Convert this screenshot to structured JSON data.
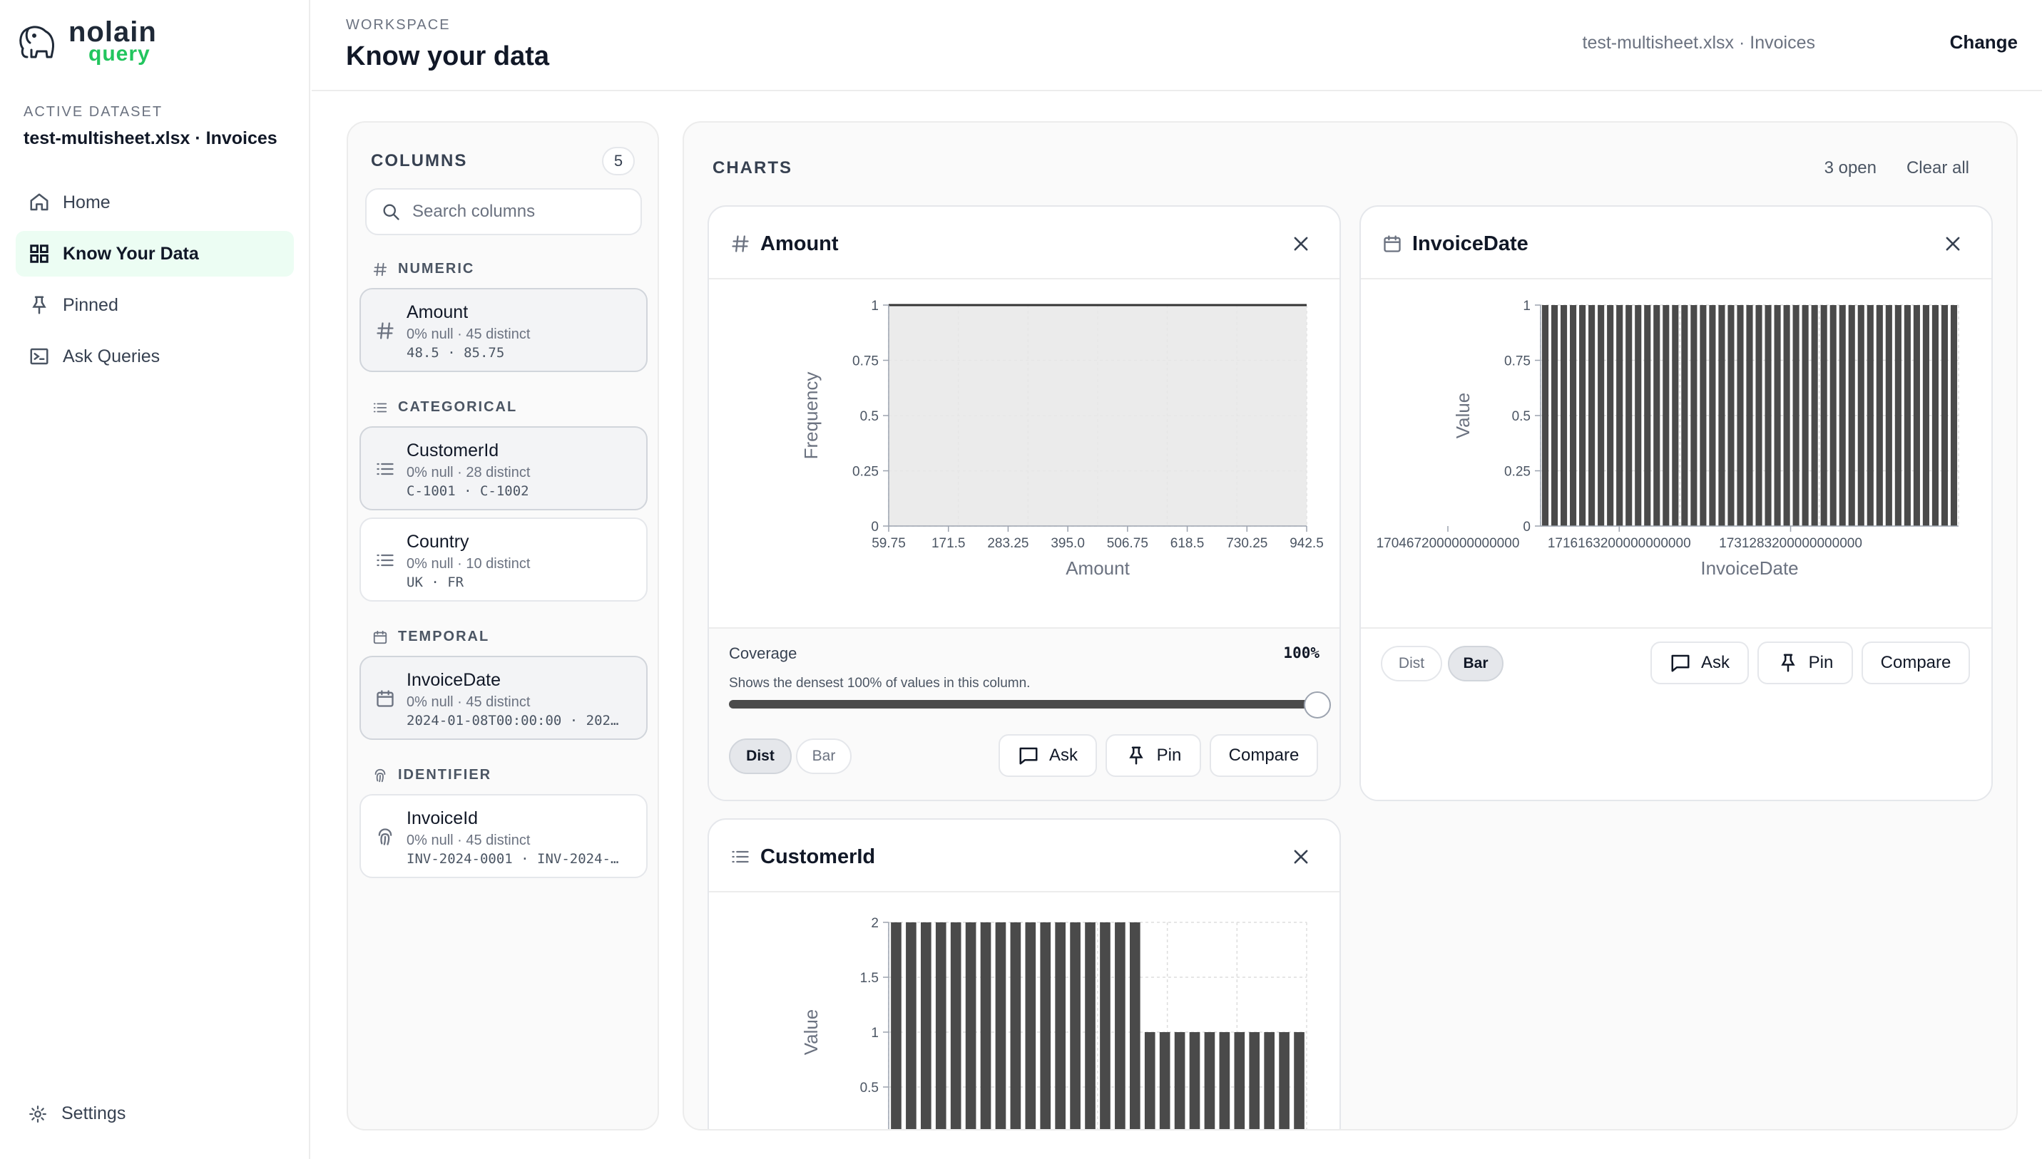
{
  "brand": {
    "line1": "nolain",
    "line2": "query"
  },
  "sidebar": {
    "active_label": "ACTIVE DATASET",
    "active_name": "test-multisheet.xlsx · Invoices",
    "items": [
      {
        "label": "Home",
        "icon": "home-icon"
      },
      {
        "label": "Know Your Data",
        "icon": "grid-icon",
        "active": true
      },
      {
        "label": "Pinned",
        "icon": "pin-icon"
      },
      {
        "label": "Ask Queries",
        "icon": "terminal-icon"
      }
    ],
    "settings_label": "Settings"
  },
  "header": {
    "section": "WORKSPACE",
    "title": "Know your data",
    "dataset": "test-multisheet.xlsx · Invoices",
    "change": "Change"
  },
  "columns_panel": {
    "title": "COLUMNS",
    "count": "5",
    "search_placeholder": "Search columns",
    "groups": {
      "numeric": "NUMERIC",
      "categorical": "CATEGORICAL",
      "temporal": "TEMPORAL",
      "identifier": "IDENTIFIER"
    },
    "columns": {
      "amount": {
        "name": "Amount",
        "stats": "0% null · 45 distinct",
        "range": "48.5 · 85.75"
      },
      "customer": {
        "name": "CustomerId",
        "stats": "0% null · 28 distinct",
        "range": "C-1001 · C-1002"
      },
      "country": {
        "name": "Country",
        "stats": "0% null · 10 distinct",
        "range": "UK · FR"
      },
      "invoicedate": {
        "name": "InvoiceDate",
        "stats": "0% null · 45 distinct",
        "range": "2024-01-08T00:00:00 · 202…"
      },
      "invoiceid": {
        "name": "InvoiceId",
        "stats": "0% null · 45 distinct",
        "range": "INV-2024-0001 · INV-2024-…"
      }
    }
  },
  "charts_panel": {
    "title": "CHARTS",
    "open_count": "3 open",
    "clear_all": "Clear all",
    "controls": {
      "coverage_label": "Coverage",
      "coverage_value": "100%",
      "coverage_desc": "Shows the densest 100% of values in this column.",
      "dist": "Dist",
      "bar": "Bar",
      "ask": "Ask",
      "pin": "Pin",
      "compare": "Compare"
    }
  },
  "chart_data": [
    {
      "type": "area",
      "title": "Amount",
      "xlabel": "Amount",
      "ylabel": "Frequency",
      "x_ticks": [
        "59.75",
        "171.5",
        "283.25",
        "395.0",
        "506.75",
        "618.5",
        "730.25",
        "942.5"
      ],
      "y_ticks": [
        "0",
        "0.25",
        "0.5",
        "0.75",
        "1"
      ],
      "ylim": [
        0,
        1
      ],
      "x": [
        48.5,
        942.5
      ],
      "values": [
        1,
        1
      ],
      "grid": true
    },
    {
      "type": "bar",
      "title": "InvoiceDate",
      "xlabel": "InvoiceDate",
      "ylabel": "Value",
      "x_ticks": [
        "1704672000000000000",
        "1716163200000000000",
        "1731283200000000000"
      ],
      "y_ticks": [
        "0",
        "0.25",
        "0.5",
        "0.75",
        "1"
      ],
      "ylim": [
        0,
        1
      ],
      "values": [
        1,
        1,
        1,
        1,
        1,
        1,
        1,
        1,
        1,
        1,
        1,
        1,
        1,
        1,
        1,
        1,
        1,
        1,
        1,
        1,
        1,
        1,
        1,
        1,
        1,
        1,
        1,
        1,
        1,
        1,
        1,
        1,
        1,
        1,
        1,
        1,
        1,
        1,
        1,
        1,
        1,
        1,
        1,
        1,
        1
      ],
      "grid": true
    },
    {
      "type": "bar",
      "title": "CustomerId",
      "xlabel": "",
      "ylabel": "Value",
      "y_ticks": [
        "0.5",
        "1",
        "1.5",
        "2"
      ],
      "ylim": [
        0,
        2
      ],
      "values": [
        2,
        2,
        2,
        2,
        2,
        2,
        2,
        2,
        2,
        2,
        2,
        2,
        2,
        2,
        2,
        2,
        2,
        1,
        1,
        1,
        1,
        1,
        1,
        1,
        1,
        1,
        1,
        1
      ],
      "grid": true
    }
  ]
}
